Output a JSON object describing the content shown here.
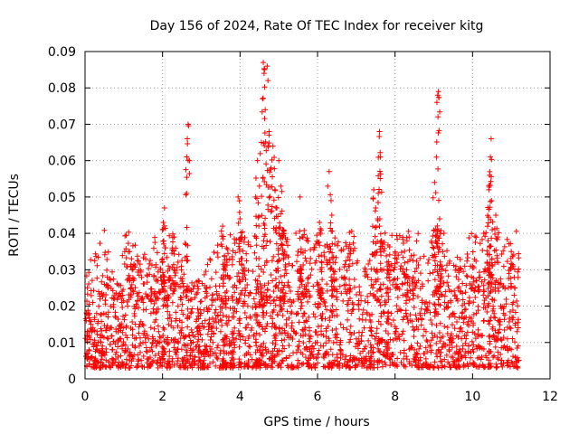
{
  "chart_data": {
    "type": "scatter",
    "title": "Day 156 of 2024, Rate Of TEC Index for receiver kitg",
    "xlabel": "GPS time / hours",
    "ylabel": "ROTI / TECUs",
    "xlim": [
      0,
      12
    ],
    "ylim": [
      0,
      0.09
    ],
    "x_ticks": [
      0,
      2,
      4,
      6,
      8,
      10,
      12
    ],
    "x_tick_labels": [
      "0",
      "2",
      "4",
      "6",
      "8",
      "10",
      "12"
    ],
    "y_ticks": [
      0,
      0.01,
      0.02,
      0.03,
      0.04,
      0.05,
      0.06,
      0.07,
      0.08,
      0.09
    ],
    "y_tick_labels": [
      "0",
      "0.01",
      "0.02",
      "0.03",
      "0.04",
      "0.05",
      "0.06",
      "0.07",
      "0.08",
      "0.09"
    ],
    "grid": true,
    "marker": "+",
    "marker_color": "#ff0000",
    "data_time_range_hours": [
      0,
      11.2
    ],
    "series": [
      {
        "name": "ROTI",
        "points": [
          [
            0.05,
            0.012
          ],
          [
            0.1,
            0.008
          ],
          [
            0.15,
            0.015
          ],
          [
            0.2,
            0.021
          ],
          [
            0.25,
            0.01
          ],
          [
            0.3,
            0.018
          ],
          [
            0.35,
            0.024
          ],
          [
            0.4,
            0.012
          ],
          [
            0.45,
            0.009
          ],
          [
            0.5,
            0.026
          ],
          [
            0.55,
            0.014
          ],
          [
            0.6,
            0.011
          ],
          [
            0.7,
            0.008
          ],
          [
            0.8,
            0.013
          ],
          [
            0.85,
            0.006
          ],
          [
            1.05,
            0.012
          ],
          [
            1.1,
            0.02
          ],
          [
            1.15,
            0.035
          ],
          [
            1.2,
            0.033
          ],
          [
            1.3,
            0.015
          ],
          [
            1.4,
            0.009
          ],
          [
            1.5,
            0.021
          ],
          [
            1.6,
            0.012
          ],
          [
            1.7,
            0.018
          ],
          [
            1.8,
            0.024
          ],
          [
            1.9,
            0.013
          ],
          [
            1.95,
            0.028
          ],
          [
            2.0,
            0.033
          ],
          [
            2.02,
            0.043
          ],
          [
            2.05,
            0.047
          ],
          [
            2.1,
            0.022
          ],
          [
            2.15,
            0.031
          ],
          [
            2.2,
            0.025
          ],
          [
            2.25,
            0.036
          ],
          [
            2.3,
            0.03
          ],
          [
            2.4,
            0.02
          ],
          [
            2.5,
            0.014
          ],
          [
            2.62,
            0.051
          ],
          [
            2.64,
            0.066
          ],
          [
            2.66,
            0.07
          ],
          [
            2.68,
            0.012
          ],
          [
            2.75,
            0.004
          ],
          [
            2.8,
            0.008
          ],
          [
            2.9,
            0.013
          ],
          [
            3.0,
            0.007
          ],
          [
            3.1,
            0.016
          ],
          [
            3.2,
            0.019
          ],
          [
            3.3,
            0.01
          ],
          [
            3.4,
            0.024
          ],
          [
            3.5,
            0.013
          ],
          [
            3.55,
            0.042
          ],
          [
            3.6,
            0.031
          ],
          [
            3.65,
            0.036
          ],
          [
            3.7,
            0.022
          ],
          [
            3.8,
            0.017
          ],
          [
            3.9,
            0.011
          ],
          [
            3.95,
            0.05
          ],
          [
            4.0,
            0.044
          ],
          [
            4.05,
            0.039
          ],
          [
            4.1,
            0.03
          ],
          [
            4.2,
            0.02
          ],
          [
            4.3,
            0.014
          ],
          [
            4.4,
            0.05
          ],
          [
            4.45,
            0.06
          ],
          [
            4.5,
            0.053
          ],
          [
            4.55,
            0.065
          ],
          [
            4.58,
            0.077
          ],
          [
            4.6,
            0.087
          ],
          [
            4.62,
            0.084
          ],
          [
            4.65,
            0.074
          ],
          [
            4.7,
            0.086
          ],
          [
            4.72,
            0.082
          ],
          [
            4.75,
            0.068
          ],
          [
            4.8,
            0.058
          ],
          [
            4.85,
            0.064
          ],
          [
            4.9,
            0.052
          ],
          [
            4.95,
            0.047
          ],
          [
            5.0,
            0.06
          ],
          [
            5.05,
            0.053
          ],
          [
            5.1,
            0.041
          ],
          [
            5.15,
            0.035
          ],
          [
            5.2,
            0.029
          ],
          [
            5.3,
            0.02
          ],
          [
            5.4,
            0.013
          ],
          [
            5.5,
            0.008
          ],
          [
            5.55,
            0.05
          ],
          [
            5.6,
            0.039
          ],
          [
            5.7,
            0.016
          ],
          [
            5.8,
            0.011
          ],
          [
            5.9,
            0.006
          ],
          [
            6.0,
            0.012
          ],
          [
            6.05,
            0.043
          ],
          [
            6.1,
            0.034
          ],
          [
            6.2,
            0.02
          ],
          [
            6.3,
            0.057
          ],
          [
            6.35,
            0.049
          ],
          [
            6.4,
            0.032
          ],
          [
            6.5,
            0.024
          ],
          [
            6.6,
            0.015
          ],
          [
            6.7,
            0.028
          ],
          [
            6.8,
            0.036
          ],
          [
            6.9,
            0.019
          ],
          [
            7.0,
            0.011
          ],
          [
            7.1,
            0.007
          ],
          [
            7.2,
            0.014
          ],
          [
            7.3,
            0.021
          ],
          [
            7.4,
            0.012
          ],
          [
            7.45,
            0.052
          ],
          [
            7.5,
            0.047
          ],
          [
            7.55,
            0.044
          ],
          [
            7.6,
            0.068
          ],
          [
            7.62,
            0.061
          ],
          [
            7.65,
            0.038
          ],
          [
            7.7,
            0.026
          ],
          [
            7.8,
            0.031
          ],
          [
            7.9,
            0.018
          ],
          [
            8.0,
            0.034
          ],
          [
            8.1,
            0.012
          ],
          [
            8.2,
            0.023
          ],
          [
            8.3,
            0.03
          ],
          [
            8.4,
            0.016
          ],
          [
            8.5,
            0.008
          ],
          [
            8.6,
            0.027
          ],
          [
            8.7,
            0.021
          ],
          [
            8.8,
            0.013
          ],
          [
            8.9,
            0.029
          ],
          [
            9.0,
            0.036
          ],
          [
            9.02,
            0.054
          ],
          [
            9.08,
            0.076
          ],
          [
            9.1,
            0.078
          ],
          [
            9.12,
            0.079
          ],
          [
            9.15,
            0.044
          ],
          [
            9.2,
            0.031
          ],
          [
            9.3,
            0.024
          ],
          [
            9.4,
            0.017
          ],
          [
            9.5,
            0.011
          ],
          [
            9.6,
            0.022
          ],
          [
            9.7,
            0.014
          ],
          [
            9.8,
            0.019
          ],
          [
            9.9,
            0.009
          ],
          [
            10.0,
            0.031
          ],
          [
            10.1,
            0.018
          ],
          [
            10.2,
            0.012
          ],
          [
            10.3,
            0.024
          ],
          [
            10.4,
            0.038
          ],
          [
            10.42,
            0.052
          ],
          [
            10.44,
            0.056
          ],
          [
            10.46,
            0.061
          ],
          [
            10.48,
            0.066
          ],
          [
            10.5,
            0.033
          ],
          [
            10.6,
            0.045
          ],
          [
            10.65,
            0.039
          ],
          [
            10.7,
            0.026
          ],
          [
            10.8,
            0.018
          ],
          [
            10.9,
            0.011
          ],
          [
            11.0,
            0.035
          ],
          [
            11.05,
            0.021
          ],
          [
            11.1,
            0.006
          ],
          [
            11.15,
            0.013
          ]
        ]
      }
    ]
  }
}
